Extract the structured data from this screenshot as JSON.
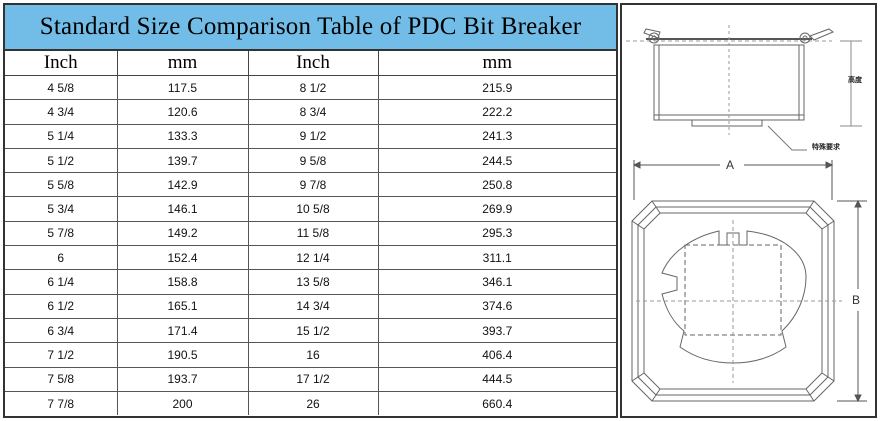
{
  "title": "Standard Size Comparison Table of PDC Bit Breaker",
  "columns": [
    "Inch",
    "mm",
    "Inch",
    "mm"
  ],
  "rows": [
    [
      "4 5/8",
      "117.5",
      "8 1/2",
      "215.9"
    ],
    [
      "4 3/4",
      "120.6",
      "8 3/4",
      "222.2"
    ],
    [
      "5 1/4",
      "133.3",
      "9 1/2",
      "241.3"
    ],
    [
      "5 1/2",
      "139.7",
      "9 5/8",
      "244.5"
    ],
    [
      "5 5/8",
      "142.9",
      "9 7/8",
      "250.8"
    ],
    [
      "5 3/4",
      "146.1",
      "10 5/8",
      "269.9"
    ],
    [
      "5 7/8",
      "149.2",
      "11 5/8",
      "295.3"
    ],
    [
      "6",
      "152.4",
      "12 1/4",
      "311.1"
    ],
    [
      "6 1/4",
      "158.8",
      "13 5/8",
      "346.1"
    ],
    [
      "6 1/2",
      "165.1",
      "14 3/4",
      "374.6"
    ],
    [
      "6 3/4",
      "171.4",
      "15 1/2",
      "393.7"
    ],
    [
      "7 1/2",
      "190.5",
      "16",
      "406.4"
    ],
    [
      "7 5/8",
      "193.7",
      "17 1/2",
      "444.5"
    ],
    [
      "7 7/8",
      "200",
      "26",
      "660.4"
    ]
  ],
  "drawing": {
    "height_label": "高度",
    "special_label": "特殊要求",
    "dim_a": "A",
    "dim_b": "B"
  }
}
